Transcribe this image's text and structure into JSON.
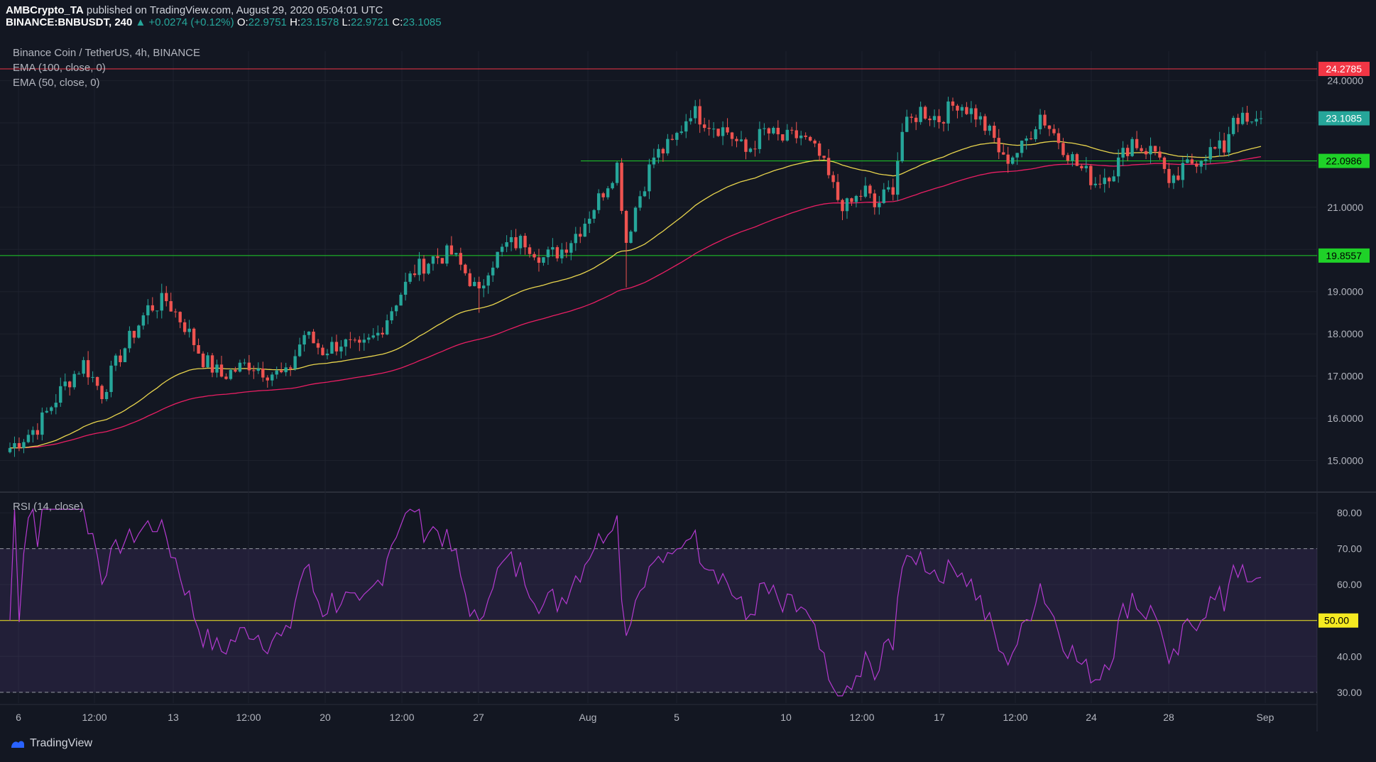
{
  "header": {
    "publisher": "AMBCrypto_TA",
    "published_text": "published on TradingView.com, August 29, 2020 05:04:01 UTC",
    "symbol": "BINANCE:BNBUSDT, 240",
    "change": "▲ +0.0274 (+0.12%)",
    "o_label": "O:",
    "o": "22.9751",
    "h_label": "H:",
    "h": "23.1578",
    "l_label": "L:",
    "l": "22.9721",
    "c_label": "C:",
    "c": "23.1085"
  },
  "legend": {
    "title": "Binance Coin / TetherUS, 4h, BINANCE",
    "ema100": "EMA (100, close, 0)",
    "ema50": "EMA (50, close, 0)",
    "rsi": "RSI (14, close)"
  },
  "brand": "TradingView",
  "colors": {
    "background": "#131722",
    "up": "#26a69a",
    "down": "#ef5350",
    "ema50": "#e8d44d",
    "ema100": "#e91e63",
    "rsi": "#b43ad0",
    "resistance": "#f23645",
    "support": "#1fd128",
    "rsi_mid": "#f5ea21"
  },
  "chart_data": [
    {
      "type": "candlestick",
      "title": "Binance Coin / TetherUS, 4h, BINANCE",
      "ylim": [
        14.3,
        24.7
      ],
      "y_ticks": [
        "15.0000",
        "16.0000",
        "17.0000",
        "18.0000",
        "19.0000",
        "21.0000",
        "24.0000"
      ],
      "x_ticks": [
        "6",
        "12:00",
        "13",
        "12:00",
        "20",
        "12:00",
        "27",
        "Aug",
        "5",
        "10",
        "12:00",
        "17",
        "12:00",
        "24",
        "28",
        "Sep"
      ],
      "horizontal_levels": [
        {
          "value": 24.2785,
          "label": "24.2785",
          "color": "#f23645"
        },
        {
          "value": 22.0986,
          "label": "22.0986",
          "color": "#1fd128"
        },
        {
          "value": 19.8557,
          "label": "19.8557",
          "color": "#1fd128"
        }
      ],
      "last_price": {
        "value": 23.1085,
        "label": "23.1085"
      },
      "close_path": [
        [
          0,
          15.3
        ],
        [
          6,
          15.8
        ],
        [
          12,
          16.8
        ],
        [
          16,
          17.3
        ],
        [
          20,
          16.6
        ],
        [
          24,
          17.5
        ],
        [
          30,
          18.6
        ],
        [
          34,
          18.8
        ],
        [
          38,
          18.2
        ],
        [
          42,
          17.4
        ],
        [
          46,
          17.0
        ],
        [
          52,
          17.3
        ],
        [
          56,
          17.1
        ],
        [
          60,
          17.0
        ],
        [
          64,
          18.0
        ],
        [
          68,
          17.6
        ],
        [
          72,
          17.8
        ],
        [
          76,
          17.6
        ],
        [
          80,
          18.0
        ],
        [
          84,
          18.8
        ],
        [
          88,
          19.5
        ],
        [
          92,
          19.8
        ],
        [
          96,
          19.9
        ],
        [
          100,
          19.3
        ],
        [
          102,
          18.9
        ],
        [
          104,
          19.6
        ],
        [
          108,
          20.1
        ],
        [
          112,
          20.2
        ],
        [
          116,
          19.8
        ],
        [
          120,
          20.0
        ],
        [
          124,
          20.5
        ],
        [
          128,
          21.2
        ],
        [
          132,
          22.0
        ],
        [
          134,
          20.2
        ],
        [
          136,
          21.0
        ],
        [
          140,
          22.2
        ],
        [
          144,
          22.5
        ],
        [
          148,
          23.3
        ],
        [
          152,
          23.0
        ],
        [
          156,
          22.8
        ],
        [
          160,
          22.3
        ],
        [
          164,
          22.8
        ],
        [
          168,
          22.6
        ],
        [
          172,
          22.7
        ],
        [
          176,
          22.2
        ],
        [
          180,
          21.2
        ],
        [
          182,
          21.0
        ],
        [
          186,
          21.4
        ],
        [
          188,
          21.0
        ],
        [
          192,
          21.5
        ],
        [
          194,
          22.8
        ],
        [
          198,
          23.3
        ],
        [
          202,
          23.1
        ],
        [
          206,
          23.5
        ],
        [
          210,
          23.2
        ],
        [
          214,
          22.6
        ],
        [
          216,
          22.1
        ],
        [
          220,
          22.4
        ],
        [
          224,
          23.2
        ],
        [
          228,
          22.6
        ],
        [
          232,
          22.0
        ],
        [
          236,
          21.6
        ],
        [
          240,
          21.9
        ],
        [
          244,
          22.6
        ],
        [
          246,
          22.4
        ],
        [
          250,
          22.3
        ],
        [
          252,
          21.4
        ],
        [
          256,
          22.0
        ],
        [
          260,
          22.3
        ],
        [
          264,
          22.4
        ],
        [
          266,
          23.2
        ],
        [
          270,
          22.9
        ],
        [
          272,
          23.1
        ]
      ],
      "ema50": "50-period EMA of close",
      "ema100": "100-period EMA of close"
    },
    {
      "type": "line",
      "title": "RSI (14, close)",
      "ylim": [
        27,
        82
      ],
      "y_ticks": [
        "80.00",
        "70.00",
        "60.00",
        "40.00",
        "30.00"
      ],
      "bands": {
        "upper": 70,
        "lower": 30,
        "middle": 50,
        "middle_label": "50.00"
      },
      "series": "RSI(14) of close"
    }
  ]
}
